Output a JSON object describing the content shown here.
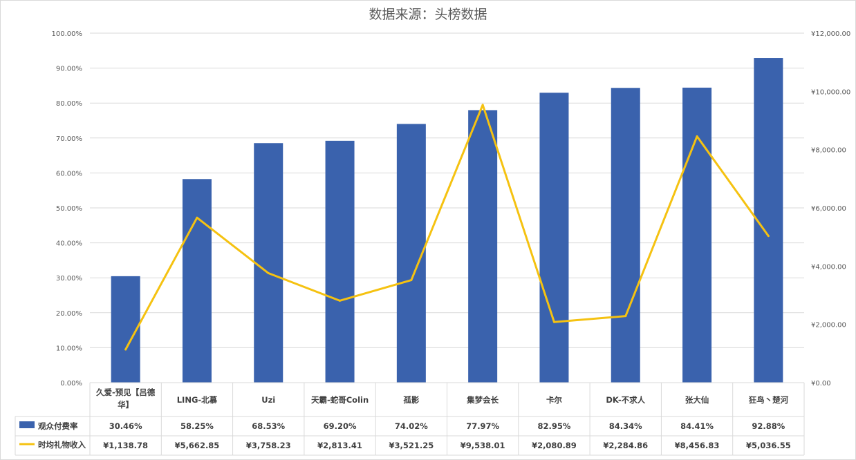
{
  "chart_data": {
    "type": "bar",
    "title": "数据来源：头榜数据",
    "categories": [
      "久爱-预见【吕德华】",
      "LING-北慕",
      "Uzi",
      "天霸-蛇哥Colin",
      "孤影",
      "集梦会长",
      "卡尔",
      "DK-不求人",
      "张大仙",
      "狂鸟丶楚河"
    ],
    "category_lines": [
      [
        "久爱-预见【吕德",
        "华】"
      ],
      [
        "LING-北慕"
      ],
      [
        "Uzi"
      ],
      [
        "天霸-蛇哥Colin"
      ],
      [
        "孤影"
      ],
      [
        "集梦会长"
      ],
      [
        "卡尔"
      ],
      [
        "DK-不求人"
      ],
      [
        "张大仙"
      ],
      [
        "狂鸟丶楚河"
      ]
    ],
    "series": [
      {
        "name": "观众付费率",
        "type": "bar",
        "axis": "left",
        "color": "#3a62ad",
        "values": [
          30.46,
          58.25,
          68.53,
          69.2,
          74.02,
          77.97,
          82.95,
          84.34,
          84.41,
          92.88
        ],
        "labels": [
          "30.46%",
          "58.25%",
          "68.53%",
          "69.20%",
          "74.02%",
          "77.97%",
          "82.95%",
          "84.34%",
          "84.41%",
          "92.88%"
        ]
      },
      {
        "name": "时均礼物收入",
        "type": "line",
        "axis": "right",
        "color": "#f5c211",
        "values": [
          1138.78,
          5662.85,
          3758.23,
          2813.41,
          3521.25,
          9538.01,
          2080.89,
          2284.86,
          8456.83,
          5036.55
        ],
        "labels": [
          "¥1,138.78",
          "¥5,662.85",
          "¥3,758.23",
          "¥2,813.41",
          "¥3,521.25",
          "¥9,538.01",
          "¥2,080.89",
          "¥2,284.86",
          "¥8,456.83",
          "¥5,036.55"
        ]
      }
    ],
    "y_left": {
      "range": [
        0,
        100
      ],
      "tick_values": [
        0,
        10,
        20,
        30,
        40,
        50,
        60,
        70,
        80,
        90,
        100
      ],
      "tick_labels": [
        "0.00%",
        "10.00%",
        "20.00%",
        "30.00%",
        "40.00%",
        "50.00%",
        "60.00%",
        "70.00%",
        "80.00%",
        "90.00%",
        "100.00%"
      ]
    },
    "y_right": {
      "range": [
        0,
        12000
      ],
      "tick_values": [
        0,
        2000,
        4000,
        6000,
        8000,
        10000,
        12000
      ],
      "tick_labels": [
        "¥0.00",
        "¥2,000.00",
        "¥4,000.00",
        "¥6,000.00",
        "¥8,000.00",
        "¥10,000.00",
        "¥12,000.00"
      ]
    },
    "grid": true,
    "data_table": true
  }
}
